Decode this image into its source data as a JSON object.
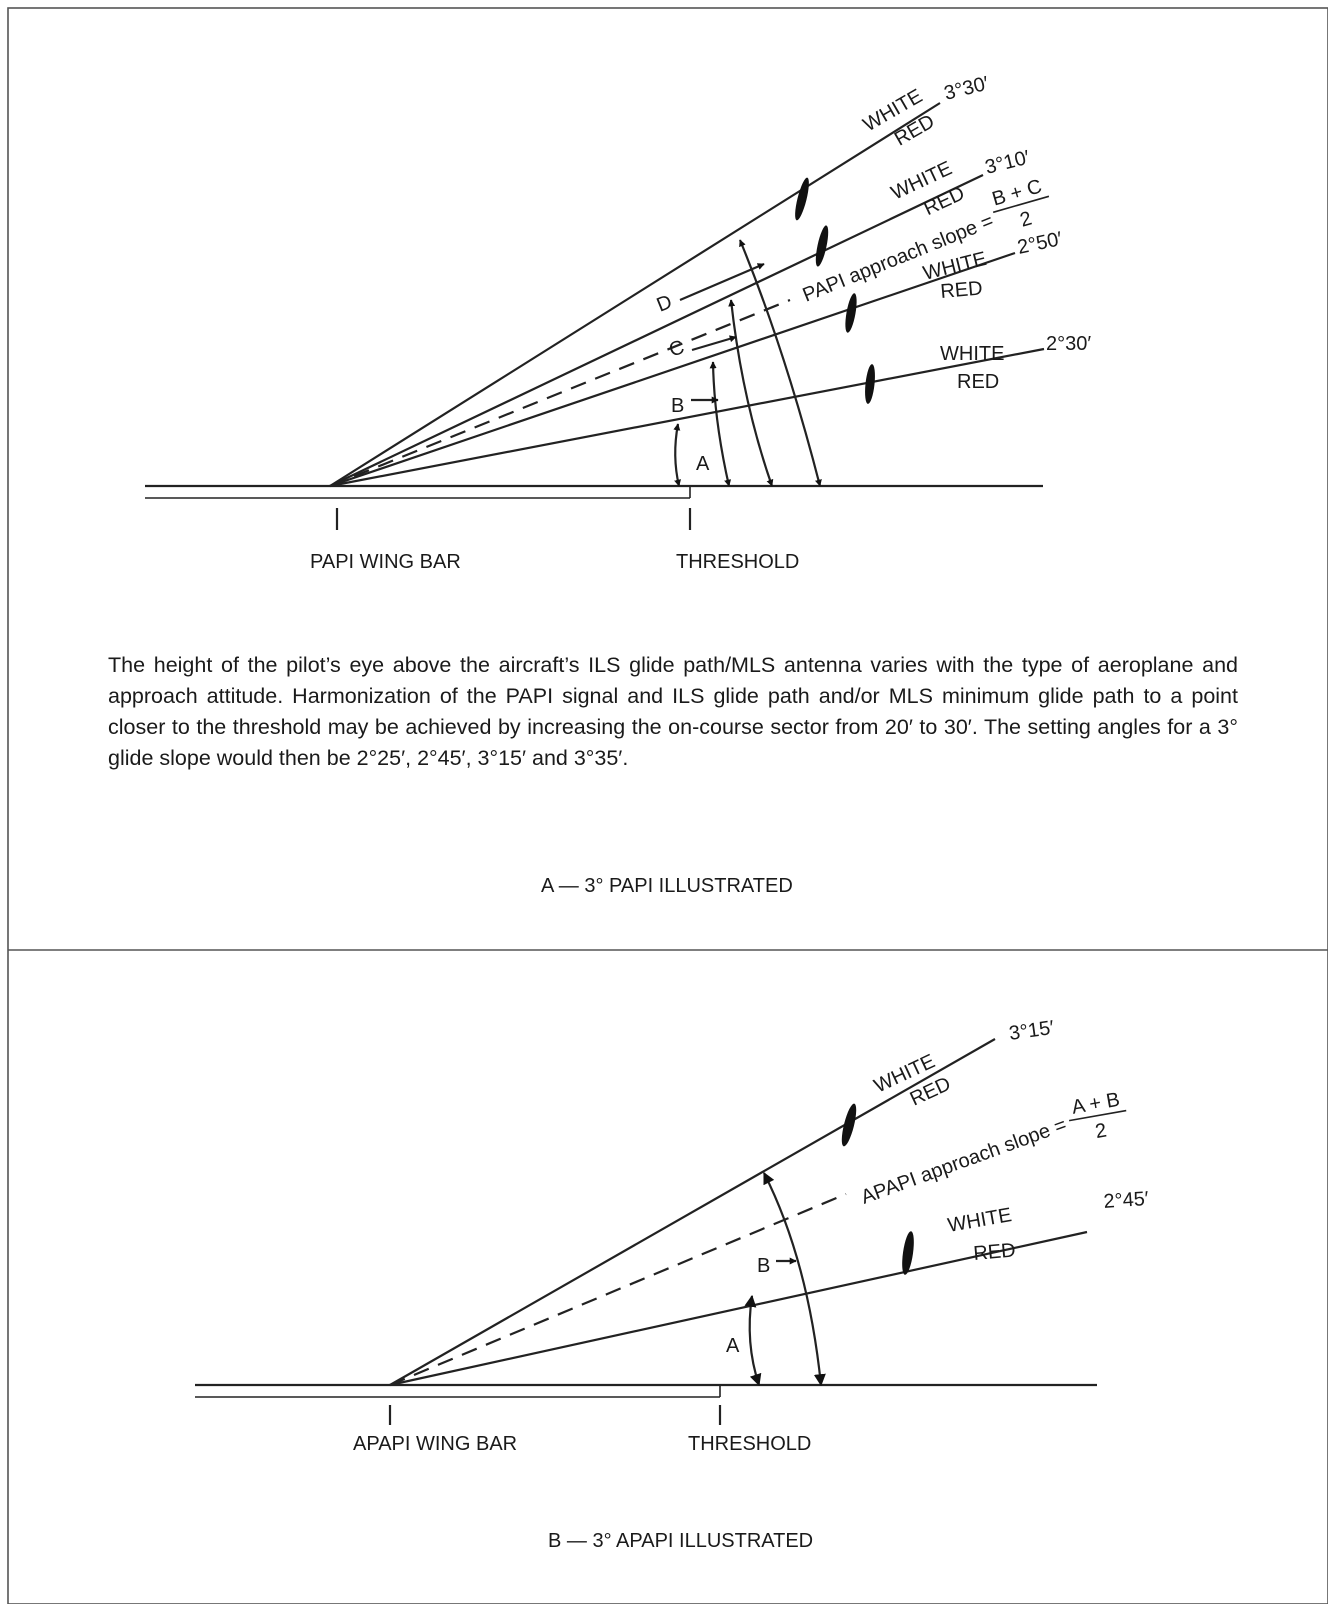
{
  "panel_a": {
    "angles": {
      "a330": "3°30′",
      "a310": "3°10′",
      "a250": "2°50′",
      "a230": "2°30′"
    },
    "white": "WHITE",
    "red": "RED",
    "slope_label": "PAPI approach slope =",
    "slope_num": "B + C",
    "slope_den": "2",
    "letters": {
      "a": "A",
      "b": "B",
      "c": "C",
      "d": "D"
    },
    "wing_bar": "PAPI WING BAR",
    "threshold": "THRESHOLD",
    "note": "The height of the pilot’s eye above the aircraft’s ILS glide path/MLS antenna varies with the type of aeroplane and approach attitude. Harmonization of the PAPI signal and ILS glide path and/or MLS minimum glide path to a point closer to the threshold may be achieved by increasing the on-course sector from 20′ to 30′. The setting angles for a 3° glide slope would then be 2°25′, 2°45′, 3°15′ and 3°35′.",
    "caption": "A — 3° PAPI ILLUSTRATED"
  },
  "panel_b": {
    "angles": {
      "a315": "3°15′",
      "a245": "2°45′"
    },
    "white": "WHITE",
    "red": "RED",
    "slope_label": "APAPI approach slope =",
    "slope_num": "A + B",
    "slope_den": "2",
    "letters": {
      "a": "A",
      "b": "B"
    },
    "wing_bar": "APAPI WING BAR",
    "threshold": "THRESHOLD",
    "caption": "B — 3° APAPI ILLUSTRATED"
  }
}
